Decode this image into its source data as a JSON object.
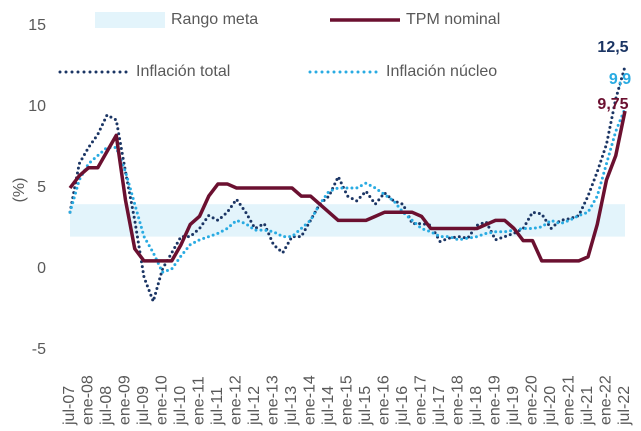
{
  "chart_data": {
    "type": "line",
    "y_label": "(%)",
    "ylim": [
      -5,
      15
    ],
    "yticks": [
      -5,
      0,
      5,
      10,
      15
    ],
    "categories": [
      "jul-07",
      null,
      "ene-08",
      null,
      "jul-08",
      null,
      "ene-09",
      null,
      "jul-09",
      null,
      "ene-10",
      null,
      "jul-10",
      null,
      "ene-11",
      null,
      "jul-11",
      null,
      "ene-12",
      null,
      "jul-12",
      null,
      "ene-13",
      null,
      "jul-13",
      null,
      "ene-14",
      null,
      "jul-14",
      null,
      "ene-15",
      null,
      "jul-15",
      null,
      "ene-16",
      null,
      "jul-16",
      null,
      "ene-17",
      null,
      "jul-17",
      null,
      "ene-18",
      null,
      "jul-18",
      null,
      "ene-19",
      null,
      "jul-19",
      null,
      "ene-20",
      null,
      "jul-20",
      null,
      "ene-21",
      null,
      "jul-21",
      null,
      "ene-22",
      null,
      "jul-22"
    ],
    "series": [
      {
        "name": "Rango meta",
        "style": "band",
        "color": "#e3f4fb",
        "range": [
          2,
          4
        ]
      },
      {
        "name": "TPM nominal",
        "style": "solid",
        "color": "#6b1030",
        "end_value_label": "9,75",
        "values": [
          5.0,
          5.75,
          6.25,
          6.25,
          7.25,
          8.25,
          4.25,
          1.25,
          0.5,
          0.5,
          0.5,
          0.5,
          1.5,
          2.75,
          3.25,
          4.5,
          5.25,
          5.25,
          5.0,
          5.0,
          5.0,
          5.0,
          5.0,
          5.0,
          5.0,
          4.5,
          4.5,
          4.0,
          3.5,
          3.0,
          3.0,
          3.0,
          3.0,
          3.25,
          3.5,
          3.5,
          3.5,
          3.5,
          3.25,
          2.5,
          2.5,
          2.5,
          2.5,
          2.5,
          2.5,
          2.75,
          3.0,
          3.0,
          2.5,
          1.75,
          1.75,
          0.5,
          0.5,
          0.5,
          0.5,
          0.5,
          0.75,
          2.75,
          5.5,
          7.0,
          9.75
        ]
      },
      {
        "name": "Inflación total",
        "style": "dotted",
        "color": "#1b3564",
        "end_value_label": "12,5",
        "values": [
          3.5,
          6.5,
          7.5,
          8.3,
          9.5,
          9.2,
          6.0,
          3.0,
          -0.5,
          -2.0,
          0.0,
          1.0,
          2.0,
          2.0,
          2.5,
          3.3,
          3.0,
          3.5,
          4.3,
          3.5,
          2.5,
          2.8,
          1.5,
          1.0,
          2.0,
          2.0,
          3.0,
          4.0,
          4.5,
          5.7,
          4.5,
          4.2,
          4.8,
          4.0,
          4.7,
          4.2,
          4.0,
          2.8,
          2.8,
          2.7,
          1.7,
          1.9,
          2.0,
          1.9,
          2.7,
          2.9,
          1.8,
          2.0,
          2.2,
          2.5,
          3.5,
          3.4,
          2.5,
          3.0,
          3.1,
          3.3,
          4.5,
          6.0,
          7.7,
          10.5,
          12.5
        ]
      },
      {
        "name": "Inflación núcleo",
        "style": "dotted",
        "color": "#29abe2",
        "end_value_label": "9,9",
        "values": [
          3.5,
          5.5,
          6.5,
          7.0,
          7.5,
          7.5,
          6.0,
          4.0,
          2.0,
          1.0,
          -0.2,
          0.0,
          0.8,
          1.5,
          1.8,
          2.0,
          2.2,
          2.5,
          3.0,
          2.8,
          2.4,
          2.4,
          2.3,
          2.0,
          2.0,
          2.5,
          3.0,
          4.0,
          4.8,
          5.0,
          5.0,
          5.0,
          5.3,
          5.0,
          4.6,
          4.2,
          3.5,
          3.0,
          2.5,
          2.3,
          2.0,
          2.0,
          1.8,
          1.9,
          2.0,
          2.2,
          2.3,
          2.3,
          2.4,
          2.5,
          2.5,
          2.6,
          3.0,
          2.8,
          3.0,
          3.3,
          3.5,
          4.5,
          6.5,
          8.5,
          9.9
        ]
      }
    ]
  }
}
